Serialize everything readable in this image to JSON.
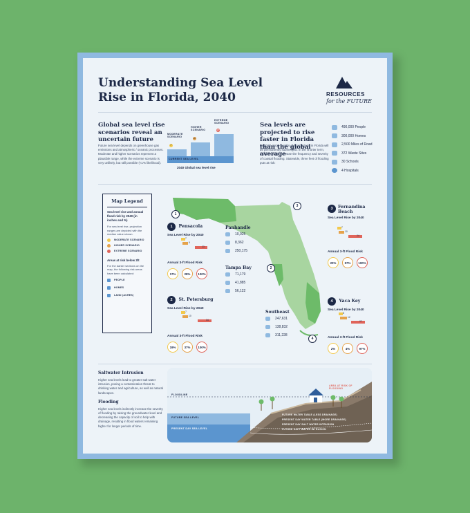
{
  "title": "Understanding Sea Level Rise in Florida, 2040",
  "brand": {
    "line1": "RESOURCES",
    "line2": "for the FUTURE"
  },
  "global": {
    "heading": "Global sea level rise scenarios reveal an uncertain future",
    "body": "Future sea level depends on greenhouse gas emissions and atmospheric / oceanic processes. Moderate and higher scenarios represent a plausible range, while the extreme scenario is very unlikely, but still possible (<1% likelihood).",
    "chart_caption": "2040 Global sea level rise",
    "current": "CURRENT SEA LEVEL",
    "scenarios": [
      {
        "name": "MODERATE SCENARIO",
        "value": "7\"",
        "color": "#f2c94c"
      },
      {
        "name": "HIGHER SCENARIO",
        "value": "10\"",
        "color": "#e5a24a"
      },
      {
        "name": "EXTREME SCENARIO",
        "value": "15\"",
        "color": "#e0645a"
      }
    ]
  },
  "florida": {
    "heading": "Sea levels are projected to rise faster in Florida than the global average",
    "body": "By 2100, large swaths of coastal land in Florida will be permanently submerged. In the shorter term, rising seas will increase the frequency and severity of coastal flooding. Statewide, three feet of flooding puts at risk:",
    "stats": [
      {
        "icon": "people-icon",
        "text": "490,000 People"
      },
      {
        "icon": "home-icon",
        "text": "300,000 Homes"
      },
      {
        "icon": "road-icon",
        "text": "2,500 Miles of Road"
      },
      {
        "icon": "waste-icon",
        "text": "372 Waste Sites"
      },
      {
        "icon": "school-icon",
        "text": "30 Schools"
      },
      {
        "icon": "hospital-icon",
        "text": "4 Hospitals"
      }
    ]
  },
  "legend": {
    "title": "Map Legend",
    "sub": "Sea level rise and annual flood risk by 2040 (in inches and %)",
    "note": "For sea level rise, projection ranges are depicted with the median value shown.",
    "items": [
      {
        "label": "MODERATE SCENARIO",
        "color": "#f2c94c"
      },
      {
        "label": "HIGHER SCENARIO",
        "color": "#e5a24a"
      },
      {
        "label": "EXTREME SCENARIO",
        "color": "#e0645a"
      }
    ],
    "areas_title": "Areas at risk below 3ft",
    "areas_note": "For the darker sections on the map, the following risk areas have been calculated:",
    "areas": [
      {
        "icon": "people-icon",
        "label": "PEOPLE"
      },
      {
        "icon": "home-icon",
        "label": "HOMES"
      },
      {
        "icon": "land-icon",
        "label": "LAND (ACRES)"
      }
    ]
  },
  "common": {
    "slr": "Sea Level Rise by 2040",
    "risk": "Annual 3-ft Flood Risk",
    "axis": [
      "0",
      "10",
      "20",
      "30",
      "40",
      "50"
    ]
  },
  "cities": [
    {
      "num": "1",
      "name": "Pensacola",
      "values": [
        "7",
        "9",
        "23"
      ],
      "risk": [
        "17%",
        "28%",
        "100%"
      ]
    },
    {
      "num": "2",
      "name": "St. Petersburg",
      "values": [
        "7",
        "10",
        "34"
      ],
      "risk": [
        "19%",
        "37%",
        "100%"
      ]
    },
    {
      "num": "3",
      "name": "Fernandina Beach",
      "values": [
        "7",
        "10",
        "24"
      ],
      "risk": [
        "20%",
        "57%",
        "100%"
      ]
    },
    {
      "num": "4",
      "name": "Vaca Key",
      "values": [
        "8",
        "12",
        "27"
      ],
      "risk": [
        "2%",
        "4%",
        "97%"
      ]
    }
  ],
  "regions": [
    {
      "name": "Panhandle",
      "people": "10,025",
      "homes": "8,362",
      "land": "250,175"
    },
    {
      "name": "Tampa Bay",
      "people": "71,179",
      "homes": "41,885",
      "land": "56,122"
    },
    {
      "name": "Southeast",
      "people": "247,631",
      "homes": "138,832",
      "land": "311,228"
    }
  ],
  "saltwater": {
    "heading": "Saltwater Intrusion",
    "body": "Higher sea levels lead to greater salt water intrusion, posing a contamination threat to drinking water and agriculture, as well as natural landscapes."
  },
  "flooding": {
    "heading": "Flooding",
    "body": "Higher sea levels indirectly increase the severity of flooding by raising the groundwater level and decreasing the capacity of soil to help with drainage, resulting in flood waters remaining higher for longer periods of time."
  },
  "diagram": {
    "floodline": "FLOODLINE",
    "future_sea": "FUTURE SEA LEVEL",
    "present_sea": "PRESENT DAY SEA LEVEL",
    "area_risk": "AREA AT RISK OF FLOODING",
    "legend": [
      "FUTURE WATER TABLE (LESS DRAINAGE)",
      "PRESENT DAY WATER TABLE (MORE DRAINAGE)",
      "PRESENT DAY SALT WATER INTRUSION",
      "FUTURE SALT WATER INTRUSION"
    ]
  }
}
